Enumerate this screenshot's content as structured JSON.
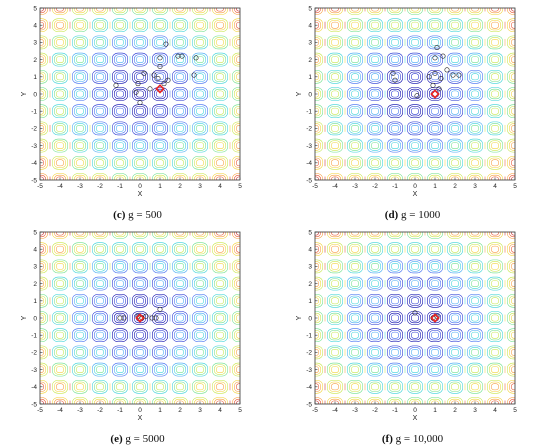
{
  "chart_data": [
    {
      "type": "contour",
      "label": "(c)",
      "title": "g = 500",
      "xlabel": "X",
      "ylabel": "Y",
      "xlim": [
        -5,
        5
      ],
      "ylim": [
        -5,
        5
      ],
      "xticks": [
        "-5",
        "-4",
        "-3",
        "-2",
        "-1",
        "0",
        "1",
        "2",
        "3",
        "4",
        "5"
      ],
      "yticks": [
        "-5",
        "-4",
        "-3",
        "-2",
        "-1",
        "0",
        "1",
        "2",
        "3",
        "4",
        "5"
      ],
      "best": [
        1.0,
        0.3
      ],
      "particles": [
        [
          -1.2,
          0.5
        ],
        [
          -0.1,
          0.6
        ],
        [
          0.2,
          1.2
        ],
        [
          0.7,
          1.1
        ],
        [
          0.9,
          0.9
        ],
        [
          1.0,
          1.6
        ],
        [
          1.0,
          2.1
        ],
        [
          1.3,
          2.9
        ],
        [
          1.4,
          0.8
        ],
        [
          1.9,
          2.2
        ],
        [
          2.1,
          2.2
        ],
        [
          2.8,
          2.1
        ],
        [
          2.7,
          1.1
        ],
        [
          0.0,
          -0.5
        ],
        [
          -0.2,
          0.1
        ],
        [
          1.2,
          0.6
        ],
        [
          0.5,
          0.3
        ]
      ]
    },
    {
      "type": "contour",
      "label": "(d)",
      "title": "g = 1000",
      "xlabel": "X",
      "ylabel": "Y",
      "xlim": [
        -5,
        5
      ],
      "ylim": [
        -5,
        5
      ],
      "xticks": [
        "-5",
        "-4",
        "-3",
        "-2",
        "-1",
        "0",
        "1",
        "2",
        "3",
        "4",
        "5"
      ],
      "yticks": [
        "-5",
        "-4",
        "-3",
        "-2",
        "-1",
        "0",
        "1",
        "2",
        "3",
        "4",
        "5"
      ],
      "best": [
        1.0,
        0.0
      ],
      "particles": [
        [
          -1.1,
          1.2
        ],
        [
          -1.0,
          0.8
        ],
        [
          0.1,
          -0.1
        ],
        [
          0.7,
          1.0
        ],
        [
          1.0,
          1.2
        ],
        [
          1.0,
          2.1
        ],
        [
          1.1,
          2.7
        ],
        [
          1.3,
          0.9
        ],
        [
          1.6,
          1.4
        ],
        [
          1.9,
          1.1
        ],
        [
          2.2,
          1.1
        ],
        [
          1.4,
          2.2
        ],
        [
          0.9,
          0.5
        ],
        [
          1.2,
          0.3
        ]
      ]
    },
    {
      "type": "contour",
      "label": "(e)",
      "title": "g = 5000",
      "xlabel": "X",
      "ylabel": "Y",
      "xlim": [
        -5,
        5
      ],
      "ylim": [
        -5,
        5
      ],
      "xticks": [
        "-5",
        "-4",
        "-3",
        "-2",
        "-1",
        "0",
        "1",
        "2",
        "3",
        "4",
        "5"
      ],
      "yticks": [
        "-5",
        "-4",
        "-3",
        "-2",
        "-1",
        "0",
        "1",
        "2",
        "3",
        "4",
        "5"
      ],
      "best": [
        0.0,
        0.0
      ],
      "particles": [
        [
          -1.0,
          0.0
        ],
        [
          -0.8,
          0.0
        ],
        [
          -0.1,
          0.1
        ],
        [
          0.1,
          0.0
        ],
        [
          0.3,
          0.1
        ],
        [
          0.6,
          0.0
        ],
        [
          0.8,
          0.0
        ],
        [
          1.0,
          0.5
        ]
      ]
    },
    {
      "type": "contour",
      "label": "(f)",
      "title": "g = 10,000",
      "xlabel": "X",
      "ylabel": "Y",
      "xlim": [
        -5,
        5
      ],
      "ylim": [
        -5,
        5
      ],
      "xticks": [
        "-5",
        "-4",
        "-3",
        "-2",
        "-1",
        "0",
        "1",
        "2",
        "3",
        "4",
        "5"
      ],
      "yticks": [
        "-5",
        "-4",
        "-3",
        "-2",
        "-1",
        "0",
        "1",
        "2",
        "3",
        "4",
        "5"
      ],
      "best": [
        1.0,
        0.0
      ],
      "particles": [
        [
          0.0,
          0.3
        ],
        [
          0.9,
          0.0
        ],
        [
          1.1,
          0.1
        ]
      ]
    }
  ],
  "colors": {
    "levels": [
      "#0000a8",
      "#1f2fd0",
      "#3a68f0",
      "#3fa6f2",
      "#39d2d8",
      "#6fe08c",
      "#c6e64a",
      "#f2d23a",
      "#f79b3a",
      "#e8502c",
      "#c81e1e"
    ],
    "particle": "#222222",
    "best": "#e8231f"
  }
}
